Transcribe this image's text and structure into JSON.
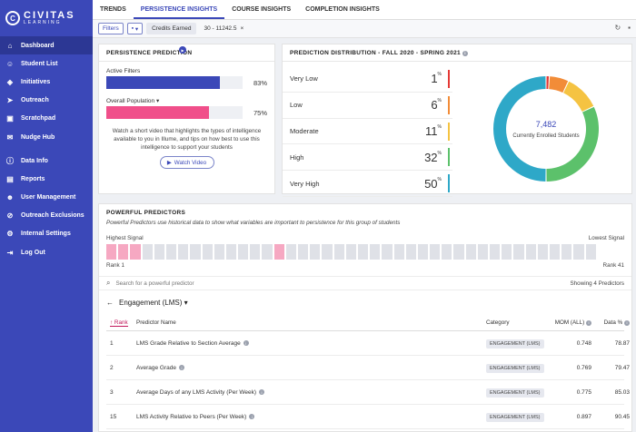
{
  "brand": {
    "name": "CIVITAS",
    "sub": "LEARNING",
    "mark": "C"
  },
  "sidebar": {
    "items": [
      {
        "label": "Dashboard",
        "icon": "home-icon",
        "glyph": "⌂",
        "active": true
      },
      {
        "label": "Student List",
        "icon": "users-icon",
        "glyph": "☺"
      },
      {
        "label": "Initiatives",
        "icon": "layers-icon",
        "glyph": "◈"
      },
      {
        "label": "Outreach",
        "icon": "send-icon",
        "glyph": "➤"
      },
      {
        "label": "Scratchpad",
        "icon": "scratchpad-icon",
        "glyph": "▣"
      },
      {
        "label": "Nudge Hub",
        "icon": "nudge-icon",
        "glyph": "✉"
      },
      {
        "label": "Data Info",
        "icon": "info-icon",
        "glyph": "ⓘ"
      },
      {
        "label": "Reports",
        "icon": "reports-icon",
        "glyph": "▤"
      },
      {
        "label": "User Management",
        "icon": "user-management-icon",
        "glyph": "☻"
      },
      {
        "label": "Outreach Exclusions",
        "icon": "exclusions-icon",
        "glyph": "⊘"
      },
      {
        "label": "Internal Settings",
        "icon": "settings-icon",
        "glyph": "⚙"
      },
      {
        "label": "Log Out",
        "icon": "logout-icon",
        "glyph": "⇥"
      }
    ]
  },
  "tabs": [
    {
      "label": "TRENDS"
    },
    {
      "label": "PERSISTENCE INSIGHTS",
      "active": true
    },
    {
      "label": "COURSE INSIGHTS"
    },
    {
      "label": "COMPLETION INSIGHTS"
    }
  ],
  "filterbar": {
    "filters_label": "Filters",
    "saved_icon": "save-icon",
    "chip_label": "Credits Earned",
    "chip_value": "30 - 11242.5",
    "chip_close": "×",
    "refresh_glyph": "↻",
    "save_glyph": "▪"
  },
  "persistence": {
    "title": "PERSISTENCE PREDICTION",
    "play_glyph": "▶",
    "active_label": "Active Filters",
    "active_pct_text": "83%",
    "active_value": 0.83,
    "active_color": "#3b48b8",
    "overall_label": "Overall Population",
    "overall_pct_text": "75%",
    "overall_value": 0.75,
    "overall_color": "#f04f8a",
    "description": "Watch a short video that highlights the types of intelligence available to you in Illume, and tips on how best to use this intelligence to support your students",
    "watch_label": "Watch Video",
    "watch_glyph": "▶"
  },
  "distribution": {
    "title": "PREDICTION DISTRIBUTION - FALL 2020 - SPRING 2021",
    "rows": [
      {
        "label": "Very Low",
        "value": "1",
        "color": "#e53935"
      },
      {
        "label": "Low",
        "value": "6",
        "color": "#f28c38"
      },
      {
        "label": "Moderate",
        "value": "11",
        "color": "#f5c342"
      },
      {
        "label": "High",
        "value": "32",
        "color": "#5cc16b"
      },
      {
        "label": "Very High",
        "value": "50",
        "color": "#2ea8c8"
      }
    ],
    "center_value": "7,482",
    "center_label": "Currently Enrolled Students",
    "percent_sign": "%"
  },
  "predictors": {
    "title": "POWERFUL PREDICTORS",
    "subtitle": "Powerful Predictors use historical data to show what variables are important to persistence for this group of students",
    "highest_label": "Highest Signal",
    "lowest_label": "Lowest Signal",
    "rank_start": "Rank 1",
    "rank_end": "Rank 41",
    "cell_count": 41,
    "highlighted_ranks": [
      1,
      2,
      3,
      15
    ],
    "search_placeholder": "Search for a powerful predictor",
    "showing": "Showing 4 Predictors",
    "category": "Engagement (LMS)",
    "back_glyph": "←",
    "columns": {
      "rank": "Rank",
      "name": "Predictor Name",
      "category": "Category",
      "mom": "MOM (ALL)",
      "data": "Data %"
    },
    "rows": [
      {
        "rank": "1",
        "name": "LMS Grade Relative to Section Average",
        "category": "ENGAGEMENT (LMS)",
        "mom": "0.748",
        "data": "78.87"
      },
      {
        "rank": "2",
        "name": "Average Grade",
        "category": "ENGAGEMENT (LMS)",
        "mom": "0.769",
        "data": "79.47"
      },
      {
        "rank": "3",
        "name": "Average Days of any LMS Activity (Per Week)",
        "category": "ENGAGEMENT (LMS)",
        "mom": "0.775",
        "data": "85.03"
      },
      {
        "rank": "15",
        "name": "LMS Activity Relative to Peers (Per Week)",
        "category": "ENGAGEMENT (LMS)",
        "mom": "0.897",
        "data": "90.45"
      }
    ]
  }
}
